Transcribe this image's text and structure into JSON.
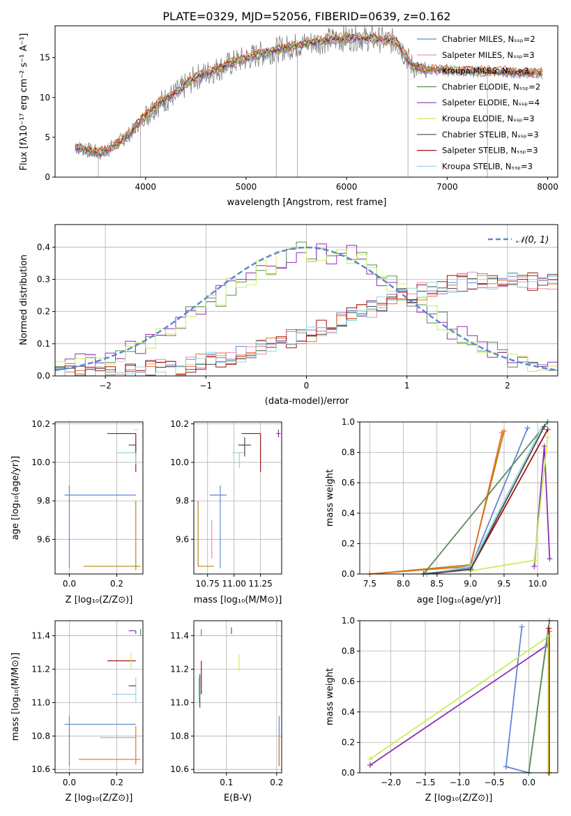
{
  "figure": {
    "title": "PLATE=0329, MJD=52056, FIBERID=0639, z=0.162"
  },
  "colors": {
    "Chabrier MILES": "#5f87d6",
    "Salpeter MILES": "#e88cb0",
    "Kroupa MILES": "#b8860b",
    "Chabrier ELODIE": "#5a8a5a",
    "Salpeter ELODIE": "#8e2fb0",
    "Kroupa ELODIE": "#c6ef5a",
    "Chabrier STELIB": "#4a4a4a",
    "Salpeter STELIB": "#a01010",
    "Kroupa STELIB": "#8fd8e0",
    "observed": "#808080",
    "orange_model": "#e6702c"
  },
  "chart_data": [
    {
      "id": "spectrum",
      "type": "line",
      "xlabel": "wavelength [Angstrom, rest frame]",
      "ylabel": "Flux [fλ10⁻¹⁷ erg cm⁻² s⁻¹ A⁻¹]",
      "xlim": [
        3100,
        8100
      ],
      "ylim": [
        0,
        19
      ],
      "xticks": [
        "4000",
        "5000",
        "6000",
        "7000",
        "8000"
      ],
      "yticks": [
        "0",
        "5",
        "10",
        "15"
      ],
      "legend_position": "right",
      "legend": [
        "Chabrier MILES, N_SSP=2",
        "Salpeter MILES, N_SSP=3",
        "Kroupa MILES, N_SSP=3",
        "Chabrier ELODIE, N_SSP=2",
        "Salpeter ELODIE, N_SSP=4",
        "Kroupa ELODIE, N_SSP=3",
        "Chabrier STELIB, N_SSP=3",
        "Salpeter STELIB, N_SSP=3",
        "Kroupa STELIB, N_SSP=3"
      ],
      "continuum": {
        "x": [
          3300,
          3450,
          3550,
          3700,
          3850,
          3950,
          4100,
          4300,
          4500,
          4700,
          4900,
          5100,
          5300,
          5500,
          5700,
          5900,
          6100,
          6300,
          6500,
          6650,
          6750
        ],
        "y": [
          3.8,
          3.3,
          3.0,
          4.0,
          5.5,
          7.0,
          9.0,
          10.5,
          12.5,
          13.5,
          14.5,
          15.3,
          16.0,
          16.5,
          17.0,
          17.3,
          17.5,
          17.3,
          17.0,
          14.0,
          13.5
        ]
      }
    },
    {
      "id": "histogram",
      "type": "line",
      "xlabel": "(data-model)/error",
      "ylabel": "Normed distribution",
      "xlim": [
        -2.5,
        2.5
      ],
      "ylim": [
        0,
        0.47
      ],
      "xticks": [
        "−2",
        "−1",
        "0",
        "1",
        "2"
      ],
      "yticks": [
        "0.0",
        "0.1",
        "0.2",
        "0.3",
        "0.4"
      ],
      "legend": [
        "𝒩(0, 1)"
      ],
      "gaussian": {
        "mu": 0,
        "sigma": 1
      },
      "groupA": {
        "x": [
          -2.5,
          -2.0,
          -1.5,
          -1.0,
          -0.5,
          0.0,
          0.5,
          1.0,
          1.5,
          2.0,
          2.5
        ],
        "y": [
          0.03,
          0.05,
          0.12,
          0.22,
          0.32,
          0.39,
          0.37,
          0.26,
          0.13,
          0.06,
          0.03
        ]
      },
      "groupB": {
        "x": [
          -2.5,
          -2.0,
          -1.5,
          -1.0,
          -0.5,
          0.0,
          0.5,
          1.0,
          1.5,
          2.0,
          2.5
        ],
        "y": [
          0.0,
          0.005,
          0.02,
          0.04,
          0.08,
          0.13,
          0.19,
          0.25,
          0.29,
          0.3,
          0.29
        ]
      }
    },
    {
      "id": "age_vs_Z",
      "type": "scatter",
      "xlabel": "Z [log₁₀(Z/Z⊙)]",
      "ylabel": "age  [log₁₀(age/yr)]",
      "xlim": [
        -0.06,
        0.31
      ],
      "ylim": [
        9.42,
        10.21
      ],
      "xticks": [
        "0.0",
        "0.2"
      ],
      "yticks": [
        "9.6",
        "9.8",
        "10.0",
        "10.2"
      ],
      "errorbars": [
        {
          "model": "Chabrier MILES",
          "x": 0.0,
          "y": 9.83,
          "xerr": [
            0.02,
            0.28
          ],
          "yerr": [
            0.38,
            0.05
          ]
        },
        {
          "model": "Kroupa MILES",
          "x": 0.28,
          "y": 9.46,
          "xerr": [
            0.22,
            0.02
          ],
          "yerr": [
            0.02,
            0.34
          ]
        },
        {
          "model": "Salpeter STELIB",
          "x": 0.28,
          "y": 10.15,
          "xerr": [
            0.12,
            0.0
          ],
          "yerr": [
            0.2,
            0.0
          ]
        },
        {
          "model": "Kroupa STELIB",
          "x": 0.28,
          "y": 10.05,
          "xerr": [
            0.08,
            0.0
          ],
          "yerr": [
            0.06,
            0.0
          ]
        },
        {
          "model": "Chabrier STELIB",
          "x": 0.28,
          "y": 10.09,
          "xerr": [
            0.03,
            0.0
          ],
          "yerr": [
            0.04,
            0.0
          ]
        },
        {
          "model": "Kroupa ELODIE",
          "x": 0.29,
          "y": 10.17,
          "xerr": [
            0.02,
            0.0
          ],
          "yerr": [
            0.0,
            0.0
          ]
        }
      ]
    },
    {
      "id": "age_vs_mass",
      "type": "scatter",
      "xlabel": "mass [log₁₀(M/M⊙)]",
      "ylabel": "",
      "xlim": [
        10.62,
        11.45
      ],
      "ylim": [
        9.42,
        10.21
      ],
      "xticks": [
        "10.75",
        "11.00",
        "11.25"
      ],
      "yticks": [
        "9.6",
        "9.8",
        "10.0",
        "10.2"
      ],
      "errorbars": [
        {
          "model": "Chabrier MILES",
          "x": 10.87,
          "y": 9.83,
          "xerr": [
            0.1,
            0.06
          ],
          "yerr": [
            0.38,
            0.05
          ]
        },
        {
          "model": "Kroupa MILES",
          "x": 10.66,
          "y": 9.46,
          "xerr": [
            0.0,
            0.15
          ],
          "yerr": [
            0.0,
            0.34
          ]
        },
        {
          "model": "Salpeter MILES",
          "x": 10.79,
          "y": 9.6,
          "xerr": [
            0.0,
            0.0
          ],
          "yerr": [
            0.1,
            0.1
          ]
        },
        {
          "model": "Salpeter STELIB",
          "x": 11.25,
          "y": 10.15,
          "xerr": [
            0.18,
            0.0
          ],
          "yerr": [
            0.2,
            0.0
          ]
        },
        {
          "model": "Kroupa STELIB",
          "x": 11.05,
          "y": 10.05,
          "xerr": [
            0.07,
            0.05
          ],
          "yerr": [
            0.08,
            0.0
          ]
        },
        {
          "model": "Chabrier STELIB",
          "x": 11.1,
          "y": 10.09,
          "xerr": [
            0.06,
            0.06
          ],
          "yerr": [
            0.06,
            0.04
          ]
        },
        {
          "model": "Salpeter ELODIE",
          "x": 11.42,
          "y": 10.15,
          "xerr": [
            0.02,
            0.02
          ],
          "yerr": [
            0.02,
            0.02
          ]
        }
      ]
    },
    {
      "id": "weight_vs_age",
      "type": "line",
      "xlabel": "age  [log₁₀(age/yr)]",
      "ylabel": "mass weight",
      "xlim": [
        7.35,
        10.3
      ],
      "ylim": [
        0,
        1.0
      ],
      "xticks": [
        "7.5",
        "8.0",
        "8.5",
        "9.0",
        "9.5",
        "10.0"
      ],
      "yticks": [
        "0.0",
        "0.2",
        "0.4",
        "0.6",
        "0.8",
        "1.0"
      ],
      "series": [
        {
          "model": "Chabrier MILES",
          "x": [
            8.3,
            9.0,
            9.85
          ],
          "y": [
            0.0,
            0.04,
            0.96
          ]
        },
        {
          "model": "Kroupa MILES",
          "x": [
            7.5,
            9.0,
            9.5
          ],
          "y": [
            0.0,
            0.06,
            0.94
          ]
        },
        {
          "model": "orange_model",
          "x": [
            7.5,
            9.0,
            9.47
          ],
          "y": [
            0.0,
            0.05,
            0.93
          ]
        },
        {
          "model": "Chabrier ELODIE",
          "x": [
            8.3,
            10.15
          ],
          "y": [
            0.0,
            1.0
          ]
        },
        {
          "model": "Salpeter ELODIE",
          "x": [
            9.95,
            10.1,
            10.18
          ],
          "y": [
            0.05,
            0.84,
            0.1
          ]
        },
        {
          "model": "Kroupa ELODIE",
          "x": [
            9.0,
            9.95,
            10.15
          ],
          "y": [
            0.02,
            0.09,
            0.9
          ]
        },
        {
          "model": "Salpeter STELIB",
          "x": [
            8.35,
            9.0,
            10.15
          ],
          "y": [
            0.0,
            0.03,
            0.95
          ]
        },
        {
          "model": "Kroupa STELIB",
          "x": [
            8.35,
            9.0,
            10.05
          ],
          "y": [
            0.0,
            0.05,
            0.95
          ]
        },
        {
          "model": "Chabrier STELIB",
          "x": [
            8.3,
            9.0,
            10.1
          ],
          "y": [
            0.0,
            0.03,
            0.97
          ]
        }
      ]
    },
    {
      "id": "mass_vs_Z",
      "type": "scatter",
      "xlabel": "Z [log₁₀(Z/Z⊙)]",
      "ylabel": "mass [log₁₀(M/M⊙)]",
      "xlim": [
        -0.06,
        0.31
      ],
      "ylim": [
        10.58,
        11.49
      ],
      "xticks": [
        "0.0",
        "0.2"
      ],
      "yticks": [
        "10.6",
        "10.8",
        "11.0",
        "11.2",
        "11.4"
      ],
      "errorbars": [
        {
          "model": "Chabrier MILES",
          "x": 0.0,
          "y": 10.87,
          "xerr": [
            0.02,
            0.28
          ],
          "yerr": [
            0.25,
            0.05
          ]
        },
        {
          "model": "orange_model",
          "x": 0.28,
          "y": 10.66,
          "xerr": [
            0.24,
            0.02
          ],
          "yerr": [
            0.03,
            0.2
          ]
        },
        {
          "model": "Salpeter MILES",
          "x": 0.28,
          "y": 10.79,
          "xerr": [
            0.15,
            0.0
          ],
          "yerr": [
            0.0,
            0.0
          ]
        },
        {
          "model": "Salpeter STELIB",
          "x": 0.28,
          "y": 11.25,
          "xerr": [
            0.12,
            0.0
          ],
          "yerr": [
            0.0,
            0.0
          ]
        },
        {
          "model": "Kroupa STELIB",
          "x": 0.28,
          "y": 11.05,
          "xerr": [
            0.1,
            0.0
          ],
          "yerr": [
            0.05,
            0.1
          ]
        },
        {
          "model": "Chabrier STELIB",
          "x": 0.28,
          "y": 11.1,
          "xerr": [
            0.03,
            0.0
          ],
          "yerr": [
            0.0,
            0.0
          ]
        },
        {
          "model": "Kroupa ELODIE",
          "x": 0.26,
          "y": 11.25,
          "xerr": [
            0.0,
            0.0
          ],
          "yerr": [
            0.05,
            0.05
          ]
        },
        {
          "model": "Salpeter ELODIE",
          "x": 0.28,
          "y": 11.43,
          "xerr": [
            0.03,
            0.0
          ],
          "yerr": [
            0.02,
            0.0
          ]
        },
        {
          "model": "Chabrier ELODIE",
          "x": 0.3,
          "y": 11.42,
          "xerr": [
            0.0,
            0.0
          ],
          "yerr": [
            0.02,
            0.02
          ]
        }
      ]
    },
    {
      "id": "mass_vs_ebv",
      "type": "scatter",
      "xlabel": "E(B-V)",
      "ylabel": "",
      "xlim": [
        0.035,
        0.21
      ],
      "ylim": [
        10.58,
        11.49
      ],
      "xticks": [
        "0.1",
        "0.2"
      ],
      "yticks": [
        "10.6",
        "10.8",
        "11.0",
        "11.2",
        "11.4"
      ],
      "errorbars": [
        {
          "model": "Chabrier MILES",
          "x": 0.205,
          "y": 10.87,
          "xerr": [
            0.0,
            0.0
          ],
          "yerr": [
            0.25,
            0.05
          ]
        },
        {
          "model": "orange_model",
          "x": 0.205,
          "y": 10.7,
          "xerr": [
            0.0,
            0.0
          ],
          "yerr": [
            0.08,
            0.1
          ]
        },
        {
          "model": "Kroupa STELIB",
          "x": 0.045,
          "y": 11.05,
          "xerr": [
            0.0,
            0.0
          ],
          "yerr": [
            0.05,
            0.1
          ]
        },
        {
          "model": "Chabrier STELIB",
          "x": 0.047,
          "y": 11.07,
          "xerr": [
            0.0,
            0.0
          ],
          "yerr": [
            0.1,
            0.1
          ]
        },
        {
          "model": "Salpeter STELIB",
          "x": 0.05,
          "y": 11.15,
          "xerr": [
            0.0,
            0.0
          ],
          "yerr": [
            0.1,
            0.1
          ]
        },
        {
          "model": "Chabrier ELODIE",
          "x": 0.05,
          "y": 11.42,
          "xerr": [
            0.0,
            0.0
          ],
          "yerr": [
            0.02,
            0.02
          ]
        },
        {
          "model": "Salpeter ELODIE",
          "x": 0.11,
          "y": 11.43,
          "xerr": [
            0.0,
            0.0
          ],
          "yerr": [
            0.02,
            0.02
          ]
        },
        {
          "model": "Kroupa ELODIE",
          "x": 0.125,
          "y": 11.24,
          "xerr": [
            0.0,
            0.0
          ],
          "yerr": [
            0.05,
            0.05
          ]
        }
      ]
    },
    {
      "id": "weight_vs_Z",
      "type": "line",
      "xlabel": "Z [log₁₀(Z/Z⊙)]",
      "ylabel": "mass weight",
      "xlim": [
        -2.45,
        0.42
      ],
      "ylim": [
        0,
        1.0
      ],
      "xticks": [
        "−2.0",
        "−1.5",
        "−1.0",
        "−0.5",
        "0.0"
      ],
      "yticks": [
        "0.0",
        "0.2",
        "0.4",
        "0.6",
        "0.8",
        "1.0"
      ],
      "series": [
        {
          "model": "Chabrier MILES",
          "x": [
            -0.33,
            0.0,
            -0.33,
            -0.1
          ],
          "y": [
            0.04,
            0.0,
            0.04,
            0.96
          ]
        },
        {
          "model": "Kroupa ELODIE",
          "x": [
            -2.3,
            0.3
          ],
          "y": [
            0.09,
            0.9
          ]
        },
        {
          "model": "Salpeter ELODIE",
          "x": [
            -2.3,
            0.27
          ],
          "y": [
            0.05,
            0.84
          ]
        },
        {
          "model": "Kroupa STELIB",
          "x": [
            0.0,
            0.28
          ],
          "y": [
            0.0,
            0.95
          ]
        },
        {
          "model": "Chabrier ELODIE",
          "x": [
            0.0,
            0.3
          ],
          "y": [
            0.0,
            1.0
          ]
        },
        {
          "model": "orange_model",
          "x": [
            0.3,
            0.3
          ],
          "y": [
            0.0,
            0.93
          ]
        },
        {
          "model": "Salpeter STELIB",
          "x": [
            0.29,
            0.29
          ],
          "y": [
            0.0,
            0.95
          ]
        },
        {
          "model": "Kroupa ELODIE",
          "x": [
            0.28,
            0.28
          ],
          "y": [
            0.0,
            0.9
          ]
        }
      ]
    }
  ]
}
